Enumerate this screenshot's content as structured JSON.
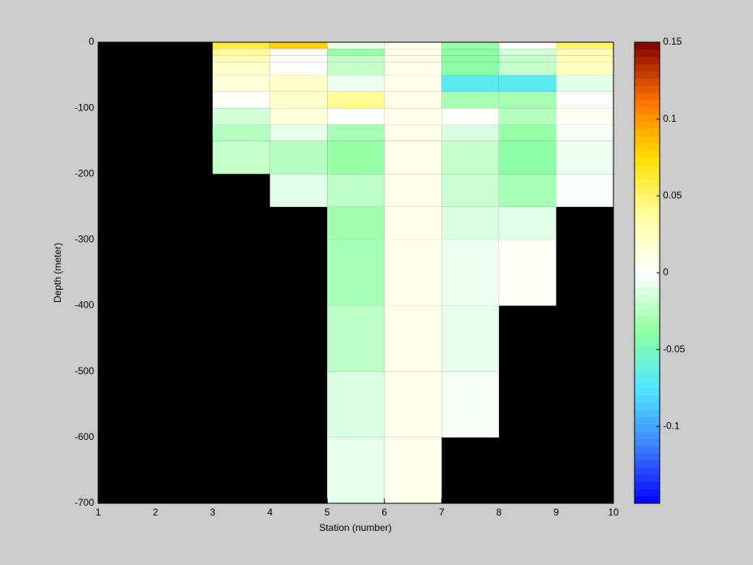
{
  "chart_data": {
    "type": "heatmap",
    "xlabel": "Station (number)",
    "ylabel": "Depth (meter)",
    "x": [
      1,
      2,
      3,
      4,
      5,
      6,
      7,
      8,
      9,
      10
    ],
    "y": [
      0,
      -10,
      -20,
      -30,
      -50,
      -75,
      -100,
      -125,
      -150,
      -200,
      -250,
      -300,
      -400,
      -500,
      -600,
      -700
    ],
    "values": [
      [
        null,
        null,
        null,
        null,
        null,
        null,
        null,
        null,
        null,
        null,
        null,
        null,
        null,
        null,
        null
      ],
      [
        null,
        null,
        null,
        null,
        null,
        null,
        null,
        null,
        null,
        null,
        null,
        null,
        null,
        null,
        null
      ],
      [
        0.06,
        0.04,
        0.025,
        0.02,
        0.015,
        0.003,
        -0.015,
        -0.025,
        -0.02,
        null,
        null,
        null,
        null,
        null,
        null
      ],
      [
        0.08,
        0.005,
        0.003,
        0.002,
        0.02,
        0.02,
        0.015,
        -0.008,
        -0.025,
        -0.01,
        null,
        null,
        null,
        null,
        null
      ],
      [
        -0.008,
        -0.035,
        -0.02,
        -0.02,
        -0.006,
        0.04,
        0.002,
        -0.03,
        -0.035,
        -0.022,
        -0.032,
        -0.03,
        -0.022,
        -0.012,
        -0.008
      ],
      [
        0.008,
        0.008,
        0.008,
        0.008,
        0.008,
        0.008,
        0.008,
        0.008,
        0.008,
        0.008,
        0.008,
        0.008,
        0.008,
        0.008,
        0.008
      ],
      [
        -0.035,
        -0.04,
        -0.04,
        -0.04,
        -0.07,
        -0.03,
        0.002,
        -0.012,
        -0.02,
        -0.018,
        -0.012,
        -0.006,
        -0.008,
        -0.003,
        null
      ],
      [
        0.003,
        -0.015,
        -0.02,
        -0.02,
        -0.07,
        -0.03,
        -0.025,
        -0.035,
        -0.04,
        -0.03,
        -0.01,
        0.003,
        null,
        null,
        null
      ],
      [
        0.05,
        0.03,
        0.03,
        0.025,
        -0.01,
        -0.002,
        0.005,
        -0.003,
        -0.006,
        -0.002,
        null,
        null,
        null,
        null,
        null
      ]
    ],
    "xlim": [
      1,
      10
    ],
    "ylim": [
      -700,
      0
    ],
    "xticks": [
      1,
      2,
      3,
      4,
      5,
      6,
      7,
      8,
      9,
      10
    ],
    "yticks": [
      0,
      -100,
      -200,
      -300,
      -400,
      -500,
      -600,
      -700
    ],
    "clim": [
      -0.15,
      0.15
    ],
    "cticks": [
      -0.1,
      -0.05,
      0,
      0.05,
      0.1,
      0.15
    ],
    "colormap": [
      "#0000ff",
      "#4080ff",
      "#50e8ff",
      "#90ffa0",
      "#ffffff",
      "#ffffa0",
      "#ffe000",
      "#ff7000",
      "#800000"
    ],
    "missing_color": "#000000"
  }
}
